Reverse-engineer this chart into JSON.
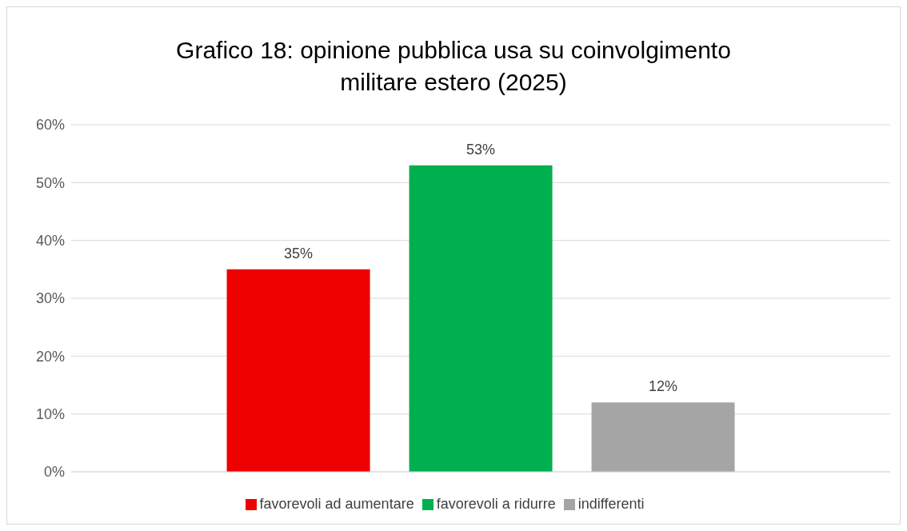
{
  "chart_data": {
    "type": "bar",
    "title": "Grafico 18: opinione pubblica usa su coinvolgimento militare estero (2025)",
    "categories": [
      null
    ],
    "series": [
      {
        "name": "favorevoli ad aumentare",
        "color": "#ee0000",
        "values": [
          35
        ],
        "value_labels": [
          "35%"
        ]
      },
      {
        "name": "favorevoli a ridurre",
        "color": "#00b050",
        "values": [
          53
        ],
        "value_labels": [
          "53%"
        ]
      },
      {
        "name": "indifferenti",
        "color": "#a5a5a5",
        "values": [
          12
        ],
        "value_labels": [
          "12%"
        ]
      }
    ],
    "ylim": [
      0,
      60
    ],
    "yticks": [
      {
        "value": 0,
        "label": "0%"
      },
      {
        "value": 10,
        "label": "10%"
      },
      {
        "value": 20,
        "label": "20%"
      },
      {
        "value": 30,
        "label": "30%"
      },
      {
        "value": 40,
        "label": "40%"
      },
      {
        "value": 50,
        "label": "50%"
      },
      {
        "value": 60,
        "label": "60%"
      }
    ],
    "grid": "y",
    "legend": "bottom"
  }
}
